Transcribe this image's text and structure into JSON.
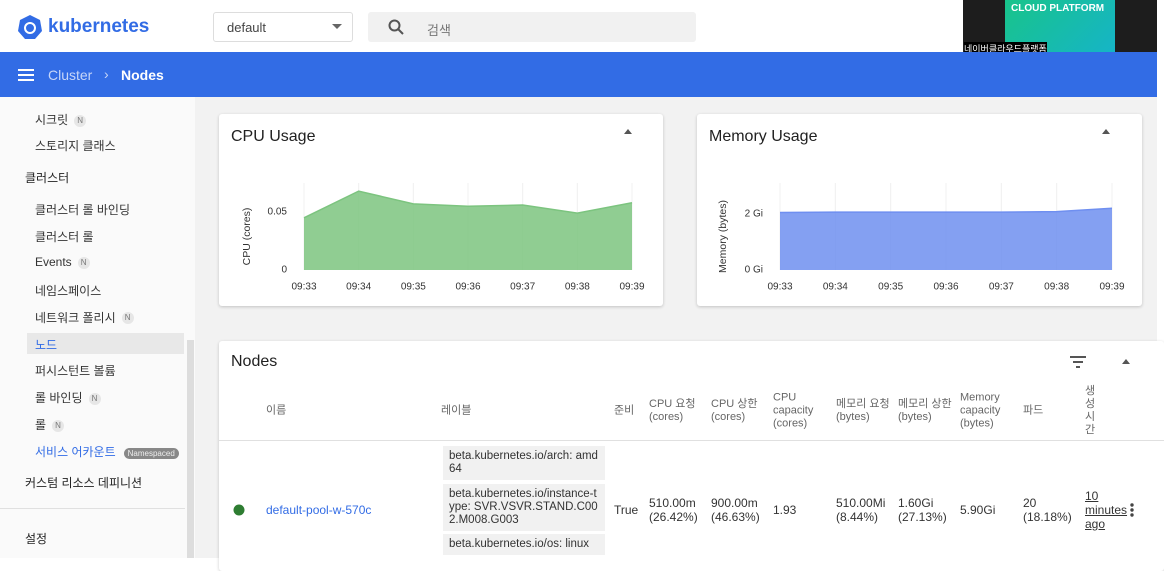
{
  "header": {
    "logo": "kubernetes",
    "namespace": "default",
    "search_placeholder": "검색"
  },
  "video_overlay": {
    "title": "CLOUD PLATFORM",
    "caption": "네이버클라우드플랫폼"
  },
  "breadcrumb": {
    "parent": "Cluster",
    "current": "Nodes"
  },
  "sidebar": {
    "top_items": [
      {
        "label": "시크릿",
        "badge": "N"
      },
      {
        "label": "스토리지 클래스"
      }
    ],
    "cluster_heading": "클러스터",
    "cluster_items": [
      {
        "label": "클러스터 롤 바인딩"
      },
      {
        "label": "클러스터 롤"
      },
      {
        "label": "Events",
        "badge": "N"
      },
      {
        "label": "네임스페이스"
      },
      {
        "label": "네트워크 폴리시",
        "badge": "N"
      },
      {
        "label": "노드",
        "selected": true
      },
      {
        "label": "퍼시스턴트 볼륨"
      },
      {
        "label": "롤 바인딩",
        "badge": "N"
      },
      {
        "label": "롤",
        "badge": "N"
      },
      {
        "label": "서비스 어카운트",
        "tooltip": "Namespaced"
      }
    ],
    "custom_resources": "커스텀 리소스 데피니션",
    "settings": "설정"
  },
  "cpu_chart": {
    "type": "area",
    "title": "CPU Usage",
    "y_label": "CPU (cores)",
    "categories": [
      "09:33",
      "09:34",
      "09:35",
      "09:36",
      "09:37",
      "09:38",
      "09:39"
    ],
    "values": [
      0.045,
      0.068,
      0.057,
      0.055,
      0.056,
      0.049,
      0.058
    ],
    "ylim": [
      0,
      0.075
    ],
    "yticks": [
      0,
      0.05
    ],
    "color": "#7cc47f"
  },
  "memory_chart": {
    "type": "area",
    "title": "Memory Usage",
    "y_label": "Memory (bytes)",
    "categories": [
      "09:33",
      "09:34",
      "09:35",
      "09:36",
      "09:37",
      "09:38",
      "09:39"
    ],
    "values": [
      2.05,
      2.06,
      2.06,
      2.06,
      2.06,
      2.08,
      2.2
    ],
    "ylim": [
      0,
      3.1
    ],
    "yticks": [
      {
        "value": 0,
        "label": "0 Gi"
      },
      {
        "value": 2,
        "label": "2 Gi"
      }
    ],
    "color": "#6f8ff0"
  },
  "nodes": {
    "title": "Nodes",
    "columns": [
      "이름",
      "레이블",
      "준비",
      "CPU 요청 (cores)",
      "CPU 상한 (cores)",
      "CPU capacity (cores)",
      "메모리 요청 (bytes)",
      "메모리 상한 (bytes)",
      "Memory capacity (bytes)",
      "파드",
      "생성 시간"
    ],
    "rows": [
      [
        "default-pool-w-570c",
        [
          "beta.kubernetes.io/arch: amd64",
          "beta.kubernetes.io/instance-type: SVR.VSVR.STAND.C002.M008.G003",
          "beta.kubernetes.io/os: linux"
        ],
        "True",
        "510.00m (26.42%)",
        "900.00m (46.63%)",
        "1.93",
        "510.00Mi (8.44%)",
        "1.60Gi (27.13%)",
        "5.90Gi",
        "20 (18.18%)",
        "10 minutes ago"
      ]
    ]
  }
}
